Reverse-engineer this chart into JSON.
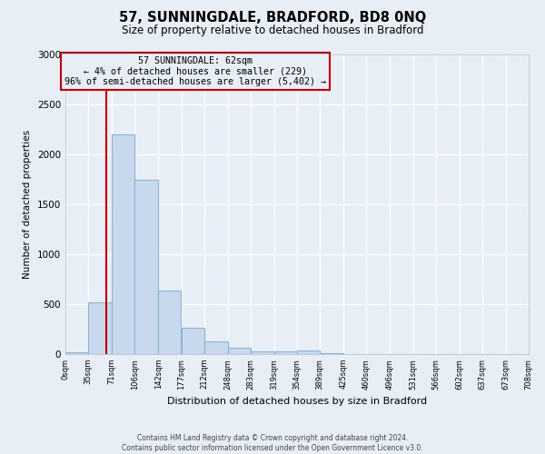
{
  "title": "57, SUNNINGDALE, BRADFORD, BD8 0NQ",
  "subtitle": "Size of property relative to detached houses in Bradford",
  "xlabel": "Distribution of detached houses by size in Bradford",
  "ylabel": "Number of detached properties",
  "bar_color": "#c8d8ed",
  "bar_edge_color": "#8ab4d4",
  "bg_color": "#e8eef5",
  "plot_bg_color": "#e8eef5",
  "grid_color": "#ffffff",
  "vline_x": 62,
  "vline_color": "#cc0000",
  "annotation_box_color": "#cc0000",
  "annotation_lines": [
    "57 SUNNINGDALE: 62sqm",
    "← 4% of detached houses are smaller (229)",
    "96% of semi-detached houses are larger (5,402) →"
  ],
  "bin_edges": [
    0,
    35,
    71,
    106,
    142,
    177,
    212,
    248,
    283,
    319,
    354,
    389,
    425,
    460,
    496,
    531,
    566,
    602,
    637,
    673,
    708
  ],
  "bar_heights": [
    20,
    520,
    2200,
    1750,
    640,
    260,
    130,
    65,
    30,
    30,
    40,
    8,
    0,
    0,
    0,
    0,
    0,
    0,
    0,
    0
  ],
  "ylim": [
    0,
    3000
  ],
  "yticks": [
    0,
    500,
    1000,
    1500,
    2000,
    2500,
    3000
  ],
  "footer_lines": [
    "Contains HM Land Registry data © Crown copyright and database right 2024.",
    "Contains public sector information licensed under the Open Government Licence v3.0."
  ]
}
